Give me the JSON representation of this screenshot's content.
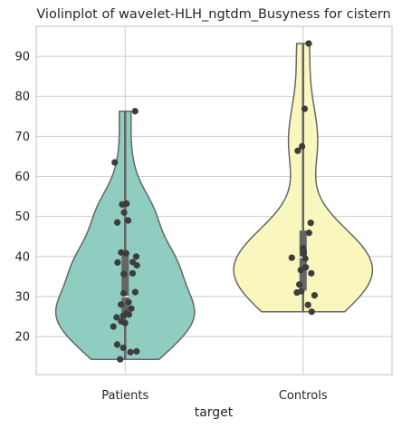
{
  "chart_data": {
    "type": "violin",
    "title": "Violinplot of wavelet-HLH_ngtdm_Busyness for cistern",
    "xlabel": "target",
    "ylabel": "",
    "categories": [
      "Patients",
      "Controls"
    ],
    "ylim": [
      10.5,
      97.5
    ],
    "yticks": [
      20,
      30,
      40,
      50,
      60,
      70,
      80,
      90
    ],
    "grid": true,
    "series": [
      {
        "category": "Patients",
        "color": "#8ecdc0",
        "min": 14.3,
        "q1": 25.0,
        "median": 30.0,
        "q3": 40.5,
        "max": 76.3,
        "points": [
          76.3,
          63.5,
          53.2,
          53.0,
          51.0,
          49.0,
          48.5,
          41.0,
          40.8,
          40.0,
          38.6,
          38.5,
          37.8,
          35.8,
          35.6,
          31.1,
          30.8,
          28.6,
          28.0,
          27.0,
          25.8,
          25.5,
          25.2,
          24.8,
          23.8,
          23.4,
          22.5,
          18.0,
          17.2,
          16.3,
          16.1,
          14.3
        ]
      },
      {
        "category": "Controls",
        "color": "#f9f7bd",
        "min": 26.2,
        "q1": 31.5,
        "median": 39.8,
        "q3": 46.5,
        "max": 93.2,
        "points": [
          93.2,
          76.9,
          67.5,
          66.4,
          48.4,
          45.9,
          42.1,
          41.2,
          40.8,
          39.7,
          39.5,
          37.3,
          36.6,
          35.8,
          33.0,
          31.3,
          31.0,
          30.3,
          27.9,
          26.2
        ]
      }
    ]
  }
}
